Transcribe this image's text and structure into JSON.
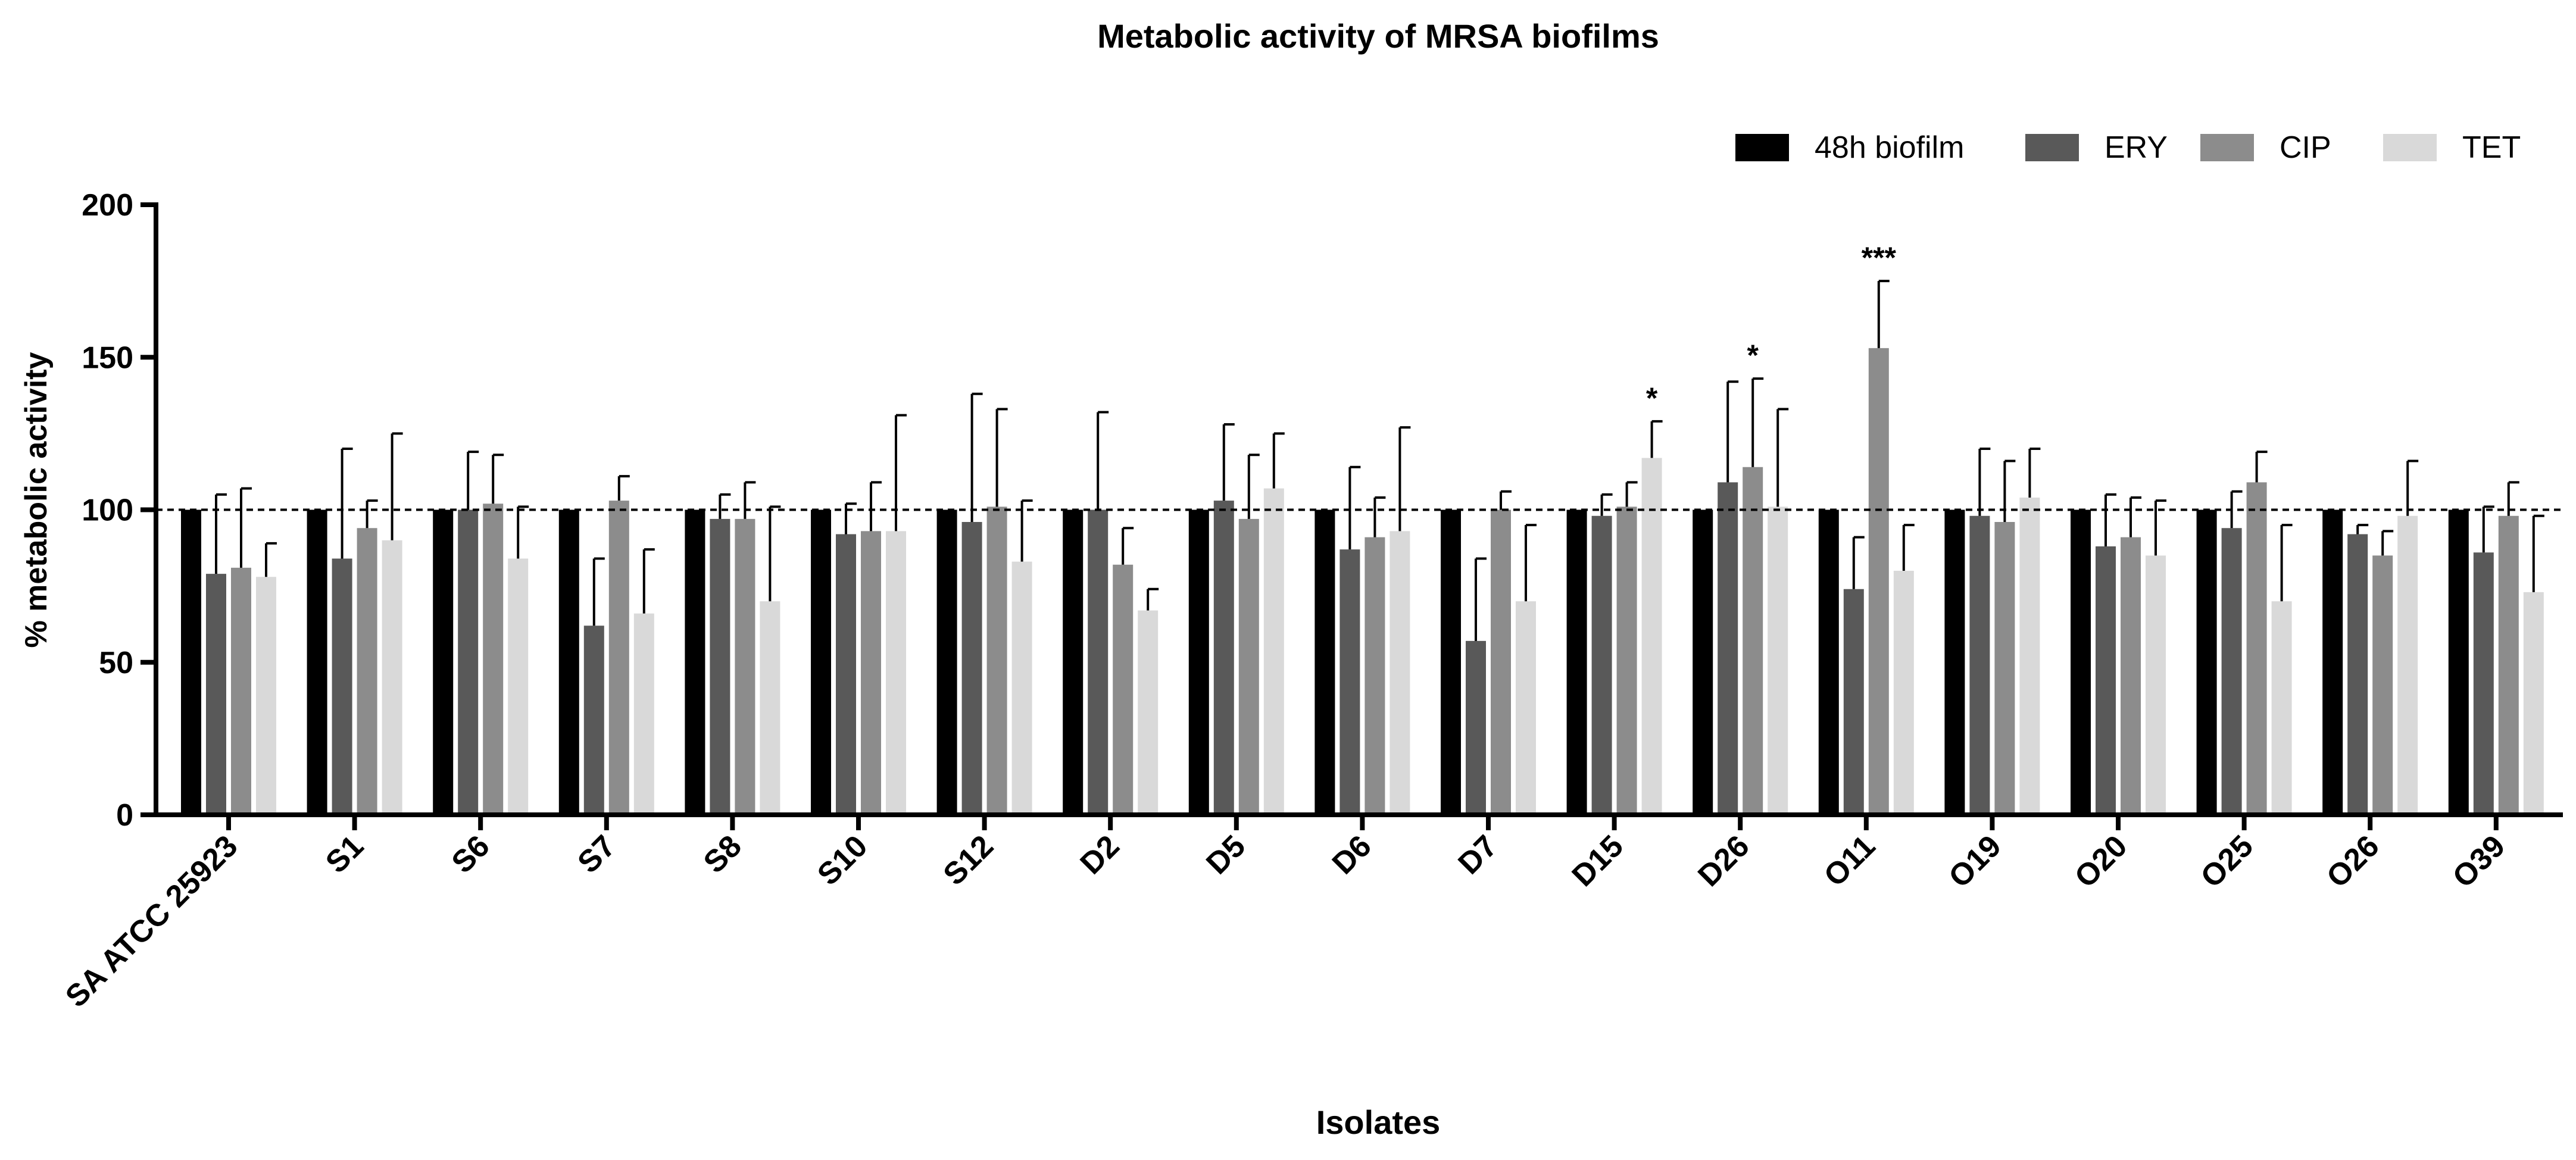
{
  "chart_data": {
    "type": "bar",
    "title": "Metabolic activity of MRSA biofilms",
    "xlabel": "Isolates",
    "ylabel": "% metabolic activity",
    "ylim": [
      0,
      200
    ],
    "yticks": [
      "0",
      "50",
      "100",
      "150",
      "200"
    ],
    "reference_line": 100,
    "legend_position": "top-right",
    "categories": [
      "SA ATCC 25923",
      "S1",
      "S6",
      "S7",
      "S8",
      "S10",
      "S12",
      "D2",
      "D5",
      "D6",
      "D7",
      "D15",
      "D26",
      "O11",
      "O19",
      "O20",
      "O25",
      "O26",
      "O39"
    ],
    "series": [
      {
        "name": "48h biofilm",
        "color": "#000000",
        "values": [
          100,
          100,
          100,
          100,
          100,
          100,
          100,
          100,
          100,
          100,
          100,
          100,
          100,
          100,
          100,
          100,
          100,
          100,
          100
        ],
        "errors": [
          0,
          0,
          0,
          0,
          0,
          0,
          0,
          0,
          0,
          0,
          0,
          0,
          0,
          0,
          0,
          0,
          0,
          0,
          0
        ]
      },
      {
        "name": "ERY",
        "color": "#595959",
        "values": [
          79,
          84,
          100,
          62,
          97,
          92,
          96,
          100,
          103,
          87,
          57,
          98,
          109,
          74,
          98,
          88,
          94,
          92,
          86
        ],
        "errors": [
          26,
          36,
          19,
          22,
          8,
          10,
          42,
          32,
          25,
          27,
          27,
          7,
          33,
          17,
          22,
          17,
          12,
          3,
          15
        ]
      },
      {
        "name": "CIP",
        "color": "#8c8c8c",
        "values": [
          81,
          94,
          102,
          103,
          97,
          93,
          101,
          82,
          97,
          91,
          100,
          101,
          114,
          153,
          96,
          91,
          109,
          85,
          98
        ],
        "errors": [
          26,
          9,
          16,
          8,
          12,
          16,
          32,
          12,
          21,
          13,
          6,
          8,
          29,
          22,
          20,
          13,
          10,
          8,
          11
        ]
      },
      {
        "name": "TET",
        "color": "#d9d9d9",
        "values": [
          78,
          90,
          84,
          66,
          70,
          93,
          83,
          67,
          107,
          93,
          70,
          117,
          101,
          80,
          104,
          85,
          70,
          98,
          73
        ],
        "errors": [
          11,
          35,
          17,
          21,
          31,
          38,
          20,
          7,
          18,
          34,
          25,
          12,
          32,
          15,
          16,
          18,
          25,
          18,
          25
        ]
      }
    ],
    "annotations": [
      {
        "category": "D15",
        "series": "TET",
        "text": "*"
      },
      {
        "category": "D26",
        "series": "CIP",
        "text": "*"
      },
      {
        "category": "O11",
        "series": "CIP",
        "text": "***"
      }
    ]
  }
}
